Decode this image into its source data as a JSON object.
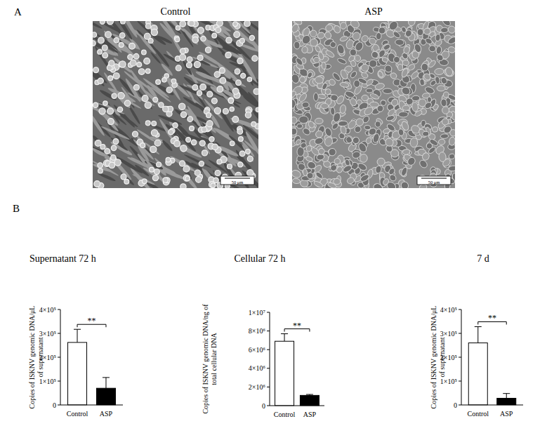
{
  "figure": {
    "panel_labels": [
      "A",
      "B"
    ],
    "images": [
      {
        "title": "Control",
        "scale_bar": "50 μm"
      },
      {
        "title": "ASP",
        "scale_bar": "50 μm"
      }
    ]
  },
  "chart_data": [
    {
      "type": "bar",
      "title": "Supernatant 72 h",
      "ylabel": [
        "Copies of ISKNV genomic DNA/μL",
        "of supernatant"
      ],
      "categories": [
        "Control",
        "ASP"
      ],
      "values": [
        262000,
        70000
      ],
      "errors": [
        55000,
        45000
      ],
      "colors": [
        "#ffffff",
        "#000000"
      ],
      "significance": "**",
      "ylim": [
        0,
        400000
      ],
      "yticks": [
        0,
        {
          "value": 100000,
          "label": "1×10⁵"
        },
        {
          "value": 200000,
          "label": "2×10⁵"
        },
        {
          "value": 300000,
          "label": "3×10⁵"
        },
        {
          "value": 400000,
          "label": "4×10⁵"
        }
      ]
    },
    {
      "type": "bar",
      "title": "Cellular 72 h",
      "ylabel": [
        "Copies of ISKNV genomic DNA/ng of",
        "total cellular DNA"
      ],
      "categories": [
        "Control",
        "ASP"
      ],
      "values": [
        6900000,
        1100000
      ],
      "errors": [
        800000,
        100000
      ],
      "colors": [
        "#ffffff",
        "#000000"
      ],
      "significance": "**",
      "ylim": [
        0,
        10000000
      ],
      "yticks": [
        0,
        {
          "value": 2000000,
          "label": "2×10⁶"
        },
        {
          "value": 4000000,
          "label": "4×10⁶"
        },
        {
          "value": 6000000,
          "label": "6×10⁶"
        },
        {
          "value": 8000000,
          "label": "8×10⁶"
        },
        {
          "value": 10000000,
          "label": "1×10⁷"
        }
      ]
    },
    {
      "type": "bar",
      "title": "7 d",
      "ylabel": [
        "Copies of ISKNV genomic DNA/μL",
        "of supernatant"
      ],
      "categories": [
        "Control",
        "ASP"
      ],
      "values": [
        260000,
        28000
      ],
      "errors": [
        68000,
        20000
      ],
      "colors": [
        "#ffffff",
        "#000000"
      ],
      "significance": "**",
      "ylim": [
        0,
        400000
      ],
      "yticks": [
        0,
        {
          "value": 100000,
          "label": "1×10⁵"
        },
        {
          "value": 200000,
          "label": "2×10⁵"
        },
        {
          "value": 300000,
          "label": "3×10⁵"
        },
        {
          "value": 400000,
          "label": "4×10⁵"
        }
      ]
    }
  ]
}
